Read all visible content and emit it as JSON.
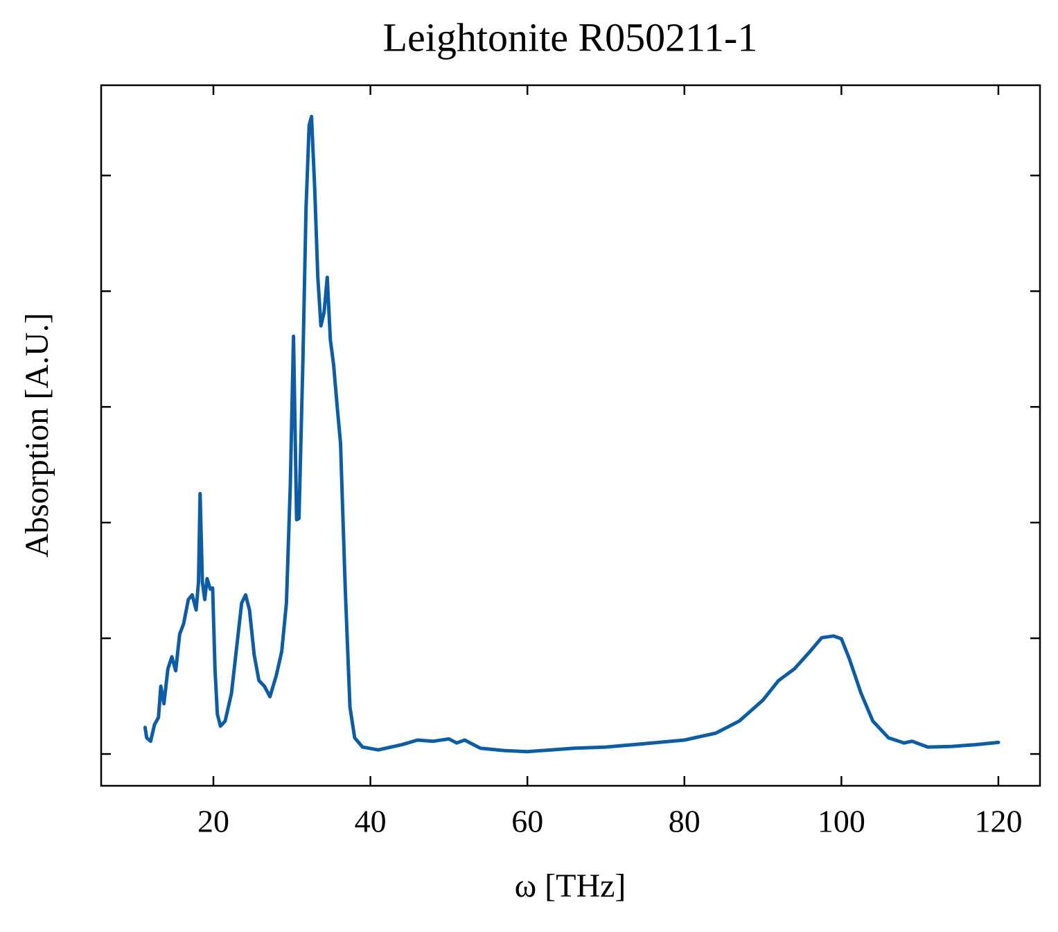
{
  "chart_data": {
    "type": "line",
    "title": "Leightonite R050211-1",
    "x_label": "ω [THz]",
    "y_label": "Absorption [A.U.]",
    "x": [
      11.3,
      11.5,
      12,
      12.5,
      13,
      13.3,
      13.7,
      14.2,
      14.7,
      15.2,
      15.7,
      16.2,
      16.8,
      17.3,
      17.8,
      18.1,
      18.3,
      18.6,
      18.9,
      19.2,
      19.6,
      19.9,
      20.2,
      20.5,
      20.9,
      21.5,
      22.3,
      23,
      23.6,
      24.1,
      24.6,
      25.2,
      25.8,
      26.5,
      27.2,
      28,
      28.7,
      29.3,
      29.8,
      30.2,
      30.6,
      30.9,
      31.4,
      31.8,
      32.2,
      32.5,
      32.9,
      33.3,
      33.7,
      34.1,
      34.5,
      34.9,
      35.3,
      35.8,
      36.2,
      36.8,
      37.4,
      38,
      39,
      41,
      44,
      46,
      48,
      50,
      51,
      52,
      54,
      57,
      60,
      63,
      66,
      70,
      75,
      80,
      84,
      87,
      90,
      92,
      94,
      96,
      97.5,
      99,
      100,
      101,
      102.5,
      104,
      106,
      108,
      109,
      111,
      114,
      117,
      120
    ],
    "values": [
      0.046,
      0.028,
      0.022,
      0.051,
      0.063,
      0.117,
      0.087,
      0.147,
      0.168,
      0.144,
      0.207,
      0.225,
      0.267,
      0.275,
      0.249,
      0.297,
      0.45,
      0.297,
      0.267,
      0.303,
      0.285,
      0.287,
      0.147,
      0.069,
      0.048,
      0.057,
      0.105,
      0.189,
      0.261,
      0.275,
      0.249,
      0.171,
      0.127,
      0.117,
      0.099,
      0.135,
      0.177,
      0.261,
      0.465,
      0.722,
      0.405,
      0.407,
      0.68,
      0.944,
      1.087,
      1.102,
      0.978,
      0.824,
      0.74,
      0.764,
      0.824,
      0.716,
      0.674,
      0.596,
      0.537,
      0.285,
      0.081,
      0.028,
      0.012,
      0.007,
      0.016,
      0.024,
      0.022,
      0.026,
      0.019,
      0.024,
      0.01,
      0.006,
      0.004,
      0.007,
      0.01,
      0.012,
      0.018,
      0.024,
      0.036,
      0.057,
      0.093,
      0.127,
      0.147,
      0.177,
      0.201,
      0.204,
      0.199,
      0.165,
      0.105,
      0.057,
      0.028,
      0.019,
      0.022,
      0.012,
      0.013,
      0.016,
      0.02
    ],
    "color": "#0c5da5",
    "xlim": [
      5.7,
      125.3
    ],
    "xticks": [
      20,
      40,
      60,
      80,
      100,
      120
    ],
    "ylim": [
      -0.055,
      1.156
    ],
    "yticks": [
      0,
      0.2,
      0.4,
      0.6,
      0.8,
      1.0
    ],
    "grid": false
  }
}
